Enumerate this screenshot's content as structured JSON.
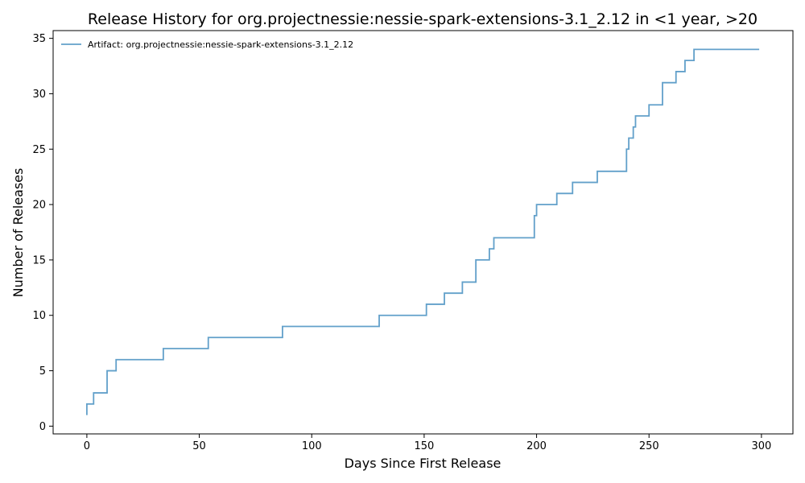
{
  "chart_data": {
    "type": "line",
    "step": "post",
    "title": "Release History for org.projectnessie:nessie-spark-extensions-3.1_2.12 in <1 year, >20",
    "xlabel": "Days Since First Release",
    "ylabel": "Number of Releases",
    "xlim": [
      -15,
      314
    ],
    "ylim": [
      -0.7,
      35.7
    ],
    "xticks": [
      0,
      50,
      100,
      150,
      200,
      250,
      300
    ],
    "yticks": [
      0,
      5,
      10,
      15,
      20,
      25,
      30,
      35
    ],
    "grid": false,
    "legend": "top-left",
    "series": [
      {
        "name": "Artifact: org.projectnessie:nessie-spark-extensions-3.1_2.12",
        "color": "#1f77b4",
        "points": [
          [
            0,
            1
          ],
          [
            0,
            2
          ],
          [
            3,
            3
          ],
          [
            9,
            5
          ],
          [
            13,
            6
          ],
          [
            34,
            7
          ],
          [
            54,
            8
          ],
          [
            87,
            9
          ],
          [
            130,
            10
          ],
          [
            151,
            11
          ],
          [
            159,
            12
          ],
          [
            167,
            13
          ],
          [
            173,
            15
          ],
          [
            179,
            16
          ],
          [
            181,
            17
          ],
          [
            199,
            19
          ],
          [
            200,
            20
          ],
          [
            209,
            21
          ],
          [
            216,
            22
          ],
          [
            227,
            23
          ],
          [
            240,
            25
          ],
          [
            241,
            26
          ],
          [
            243,
            27
          ],
          [
            244,
            28
          ],
          [
            250,
            29
          ],
          [
            256,
            31
          ],
          [
            262,
            32
          ],
          [
            266,
            33
          ],
          [
            270,
            34
          ],
          [
            299,
            34
          ]
        ]
      }
    ]
  }
}
